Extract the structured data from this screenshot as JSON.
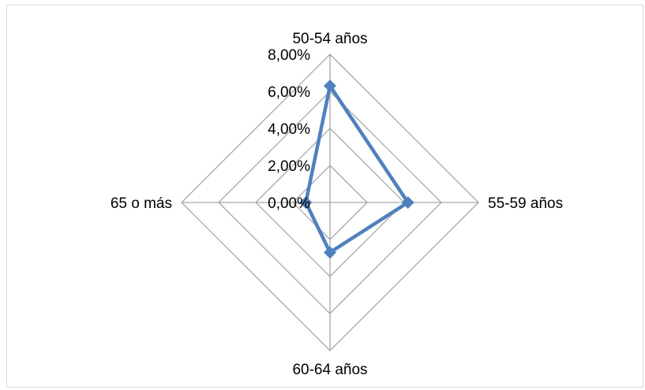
{
  "chart_data": {
    "type": "radar",
    "categories": [
      "50-54 años",
      "55-59 años",
      "60-64 años",
      "65 o más"
    ],
    "series": [
      {
        "values": [
          0.063,
          0.042,
          0.027,
          0.013
        ]
      }
    ],
    "rlim": [
      0,
      0.08
    ],
    "ticks": [
      "0,00%",
      "2,00%",
      "4,00%",
      "6,00%",
      "8,00%"
    ],
    "tick_values": [
      0,
      0.02,
      0.04,
      0.06,
      0.08
    ],
    "grid": true,
    "colors": {
      "series": "#4f81bd",
      "grid": "#a6a6a6"
    }
  }
}
